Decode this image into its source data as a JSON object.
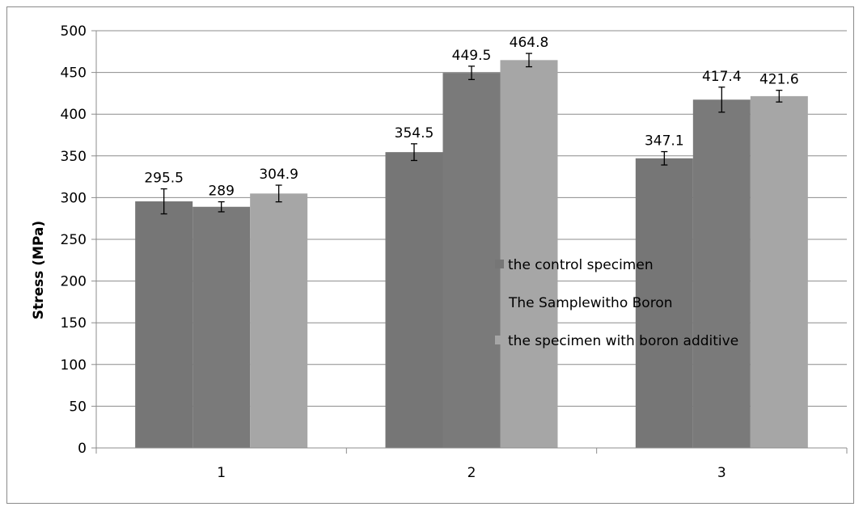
{
  "chart_data": {
    "type": "bar",
    "categories": [
      "1",
      "2",
      "3"
    ],
    "series": [
      {
        "name": "the control specimen",
        "values": [
          295.5,
          354.5,
          347.1
        ],
        "errors": [
          15,
          10,
          8
        ],
        "color": "#767676"
      },
      {
        "name": "The Samplewitho Boron",
        "values": [
          289,
          449.5,
          417.4
        ],
        "errors": [
          6,
          8,
          15
        ],
        "color": "#7a7a7a"
      },
      {
        "name": "the specimen with boron additive",
        "values": [
          304.9,
          464.8,
          421.6
        ],
        "errors": [
          10,
          8,
          7
        ],
        "color": "#a6a6a6"
      }
    ],
    "data_labels": [
      [
        "295.5",
        "354.5",
        "347.1"
      ],
      [
        "289",
        "449.5",
        "417.4"
      ],
      [
        "304.9",
        "464.8",
        "421.6"
      ]
    ],
    "ylabel": "Stress (MPa)",
    "xlabel": "",
    "ylim": [
      0,
      500
    ],
    "yticks": [
      0,
      50,
      100,
      150,
      200,
      250,
      300,
      350,
      400,
      450,
      500
    ],
    "grid": true,
    "legend": "center-right",
    "error_bars": true
  }
}
